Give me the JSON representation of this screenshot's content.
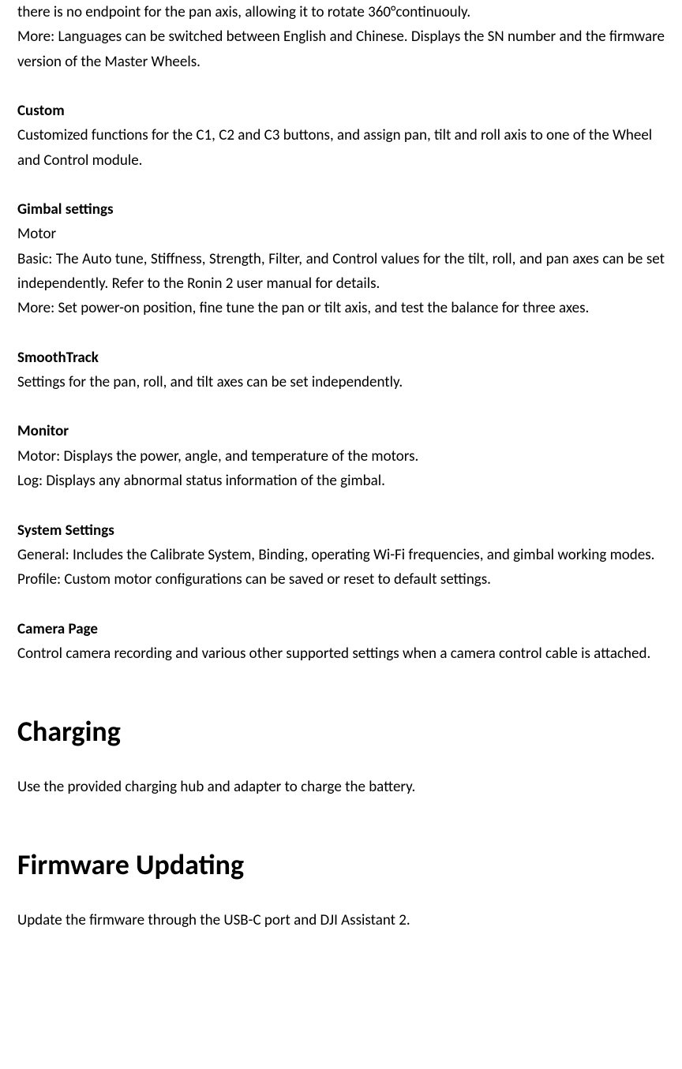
{
  "intro": {
    "line1": "there is no endpoint for the pan axis, allowing it to rotate 360°continuouly.",
    "line2": "More: Languages can be switched between English and Chinese. Displays the SN number and the firmware version of the Master Wheels."
  },
  "custom": {
    "heading": "Custom",
    "body": "Customized functions for the C1, C2 and C3 buttons, and assign pan, tilt and roll axis to one of the Wheel and Control module."
  },
  "gimbal": {
    "heading": "Gimbal settings",
    "motor_label": "Motor",
    "basic": "Basic: The Auto tune, Stiffness, Strength, Filter, and Control values for the tilt, roll, and pan axes can be set independently. Refer to the Ronin 2 user manual for details.",
    "more": "More: Set power-on position, fine tune the pan or tilt axis, and test the balance for three axes."
  },
  "smoothtrack": {
    "heading": "SmoothTrack",
    "body": "Settings for the pan, roll, and tilt axes can be set independently."
  },
  "monitor": {
    "heading": "Monitor",
    "motor": "Motor: Displays the power, angle, and temperature of the motors.",
    "log": "Log: Displays any abnormal status information of the gimbal."
  },
  "system": {
    "heading": "System Settings",
    "general": "General: Includes the Calibrate System, Binding, operating Wi-Fi frequencies, and gimbal working modes.",
    "profile": "Profile: Custom motor configurations can be saved or reset to default settings."
  },
  "camera": {
    "heading": "Camera Page",
    "body": "Control camera recording and various other supported settings when a camera control cable is attached."
  },
  "charging": {
    "heading": "Charging",
    "body": "Use the provided charging hub and adapter to charge the battery."
  },
  "firmware": {
    "heading": "Firmware Updating",
    "body": "Update the firmware through the USB-C port and DJI Assistant 2."
  }
}
